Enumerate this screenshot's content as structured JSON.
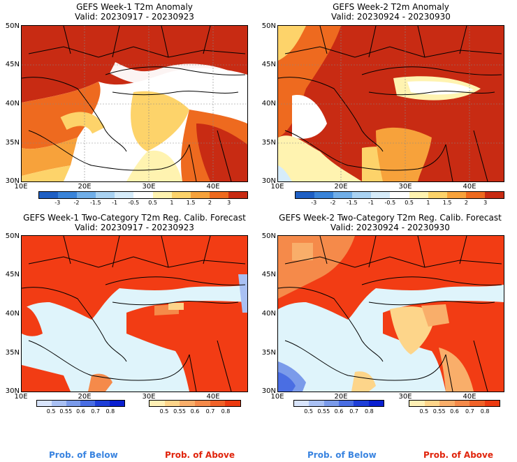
{
  "panels": [
    {
      "title": "GEFS Week-1 T2m Anomaly",
      "valid": "Valid: 20230917 - 20230923"
    },
    {
      "title": "GEFS Week-2 T2m Anomaly",
      "valid": "Valid: 20230924 - 20230930"
    },
    {
      "title": "GEFS Week-1 Two-Category T2m Reg. Calib. Forecast",
      "valid": "Valid: 20230917 - 20230923"
    },
    {
      "title": "GEFS Week-2 Two-Category T2m Reg. Calib. Forecast",
      "valid": "Valid: 20230924 - 20230930"
    }
  ],
  "lat_labels": [
    "50N",
    "45N",
    "40N",
    "35N",
    "30N"
  ],
  "lon_labels": [
    "10E",
    "20E",
    "30E",
    "40E"
  ],
  "anomaly_scale": {
    "labels": [
      "-3",
      "-2",
      "-1.5",
      "-1",
      "-0.5",
      "0.5",
      "1",
      "1.5",
      "2",
      "3"
    ],
    "colors": [
      "#1e5fc4",
      "#3a84d9",
      "#70aee8",
      "#a9d2f2",
      "#d6ecfa",
      "#ffffff",
      "#fff3b0",
      "#fdd36a",
      "#f7a23b",
      "#ee6a1f",
      "#c82b13"
    ]
  },
  "prob_scale": {
    "below_labels": [
      "0.5",
      "0.55",
      "0.6",
      "0.7",
      "0.8"
    ],
    "below_colors": [
      "#d8e4fb",
      "#a9c0f3",
      "#7b9bea",
      "#4a6ee3",
      "#1f3fd8",
      "#0a1fd0"
    ],
    "above_labels": [
      "0.5",
      "0.55",
      "0.6",
      "0.7",
      "0.8"
    ],
    "above_colors": [
      "#fff0b5",
      "#fdd58a",
      "#f9ae6a",
      "#f58a4a",
      "#f06228",
      "#ec3a10"
    ]
  },
  "legend": {
    "below": "Prob. of Below",
    "above": "Prob. of Above"
  },
  "colors": {
    "sea_background": "#dff4fb",
    "above_main": "#f23c14",
    "below_light": "#cfe2fb"
  }
}
